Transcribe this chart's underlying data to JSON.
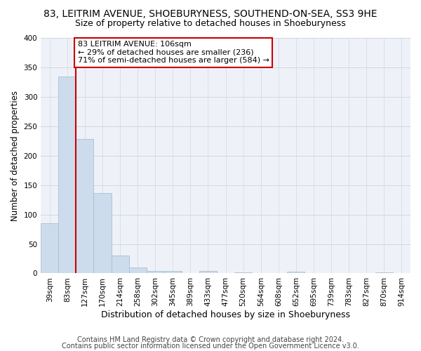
{
  "title": "83, LEITRIM AVENUE, SHOEBURYNESS, SOUTHEND-ON-SEA, SS3 9HE",
  "subtitle": "Size of property relative to detached houses in Shoeburyness",
  "xlabel": "Distribution of detached houses by size in Shoeburyness",
  "ylabel": "Number of detached properties",
  "footer1": "Contains HM Land Registry data © Crown copyright and database right 2024.",
  "footer2": "Contains public sector information licensed under the Open Government Licence v3.0.",
  "categories": [
    "39sqm",
    "83sqm",
    "127sqm",
    "170sqm",
    "214sqm",
    "258sqm",
    "302sqm",
    "345sqm",
    "389sqm",
    "433sqm",
    "477sqm",
    "520sqm",
    "564sqm",
    "608sqm",
    "652sqm",
    "695sqm",
    "739sqm",
    "783sqm",
    "827sqm",
    "870sqm",
    "914sqm"
  ],
  "values": [
    85,
    335,
    228,
    136,
    30,
    10,
    4,
    4,
    0,
    4,
    0,
    2,
    0,
    0,
    3,
    0,
    0,
    0,
    0,
    2,
    0
  ],
  "bar_color": "#ccdcec",
  "bar_edge_color": "#aabfcf",
  "red_line_x": 1.5,
  "annotation_text": "83 LEITRIM AVENUE: 106sqm\n← 29% of detached houses are smaller (236)\n71% of semi-detached houses are larger (584) →",
  "annotation_box_color": "#ffffff",
  "annotation_box_edge": "#cc0000",
  "red_line_color": "#cc0000",
  "ylim": [
    0,
    400
  ],
  "yticks": [
    0,
    50,
    100,
    150,
    200,
    250,
    300,
    350,
    400
  ],
  "grid_color": "#d0d8e0",
  "bg_color": "#eef2f8",
  "title_fontsize": 10,
  "subtitle_fontsize": 9,
  "xlabel_fontsize": 9,
  "ylabel_fontsize": 8.5,
  "tick_fontsize": 7.5,
  "footer_fontsize": 7,
  "ann_fontsize": 8
}
